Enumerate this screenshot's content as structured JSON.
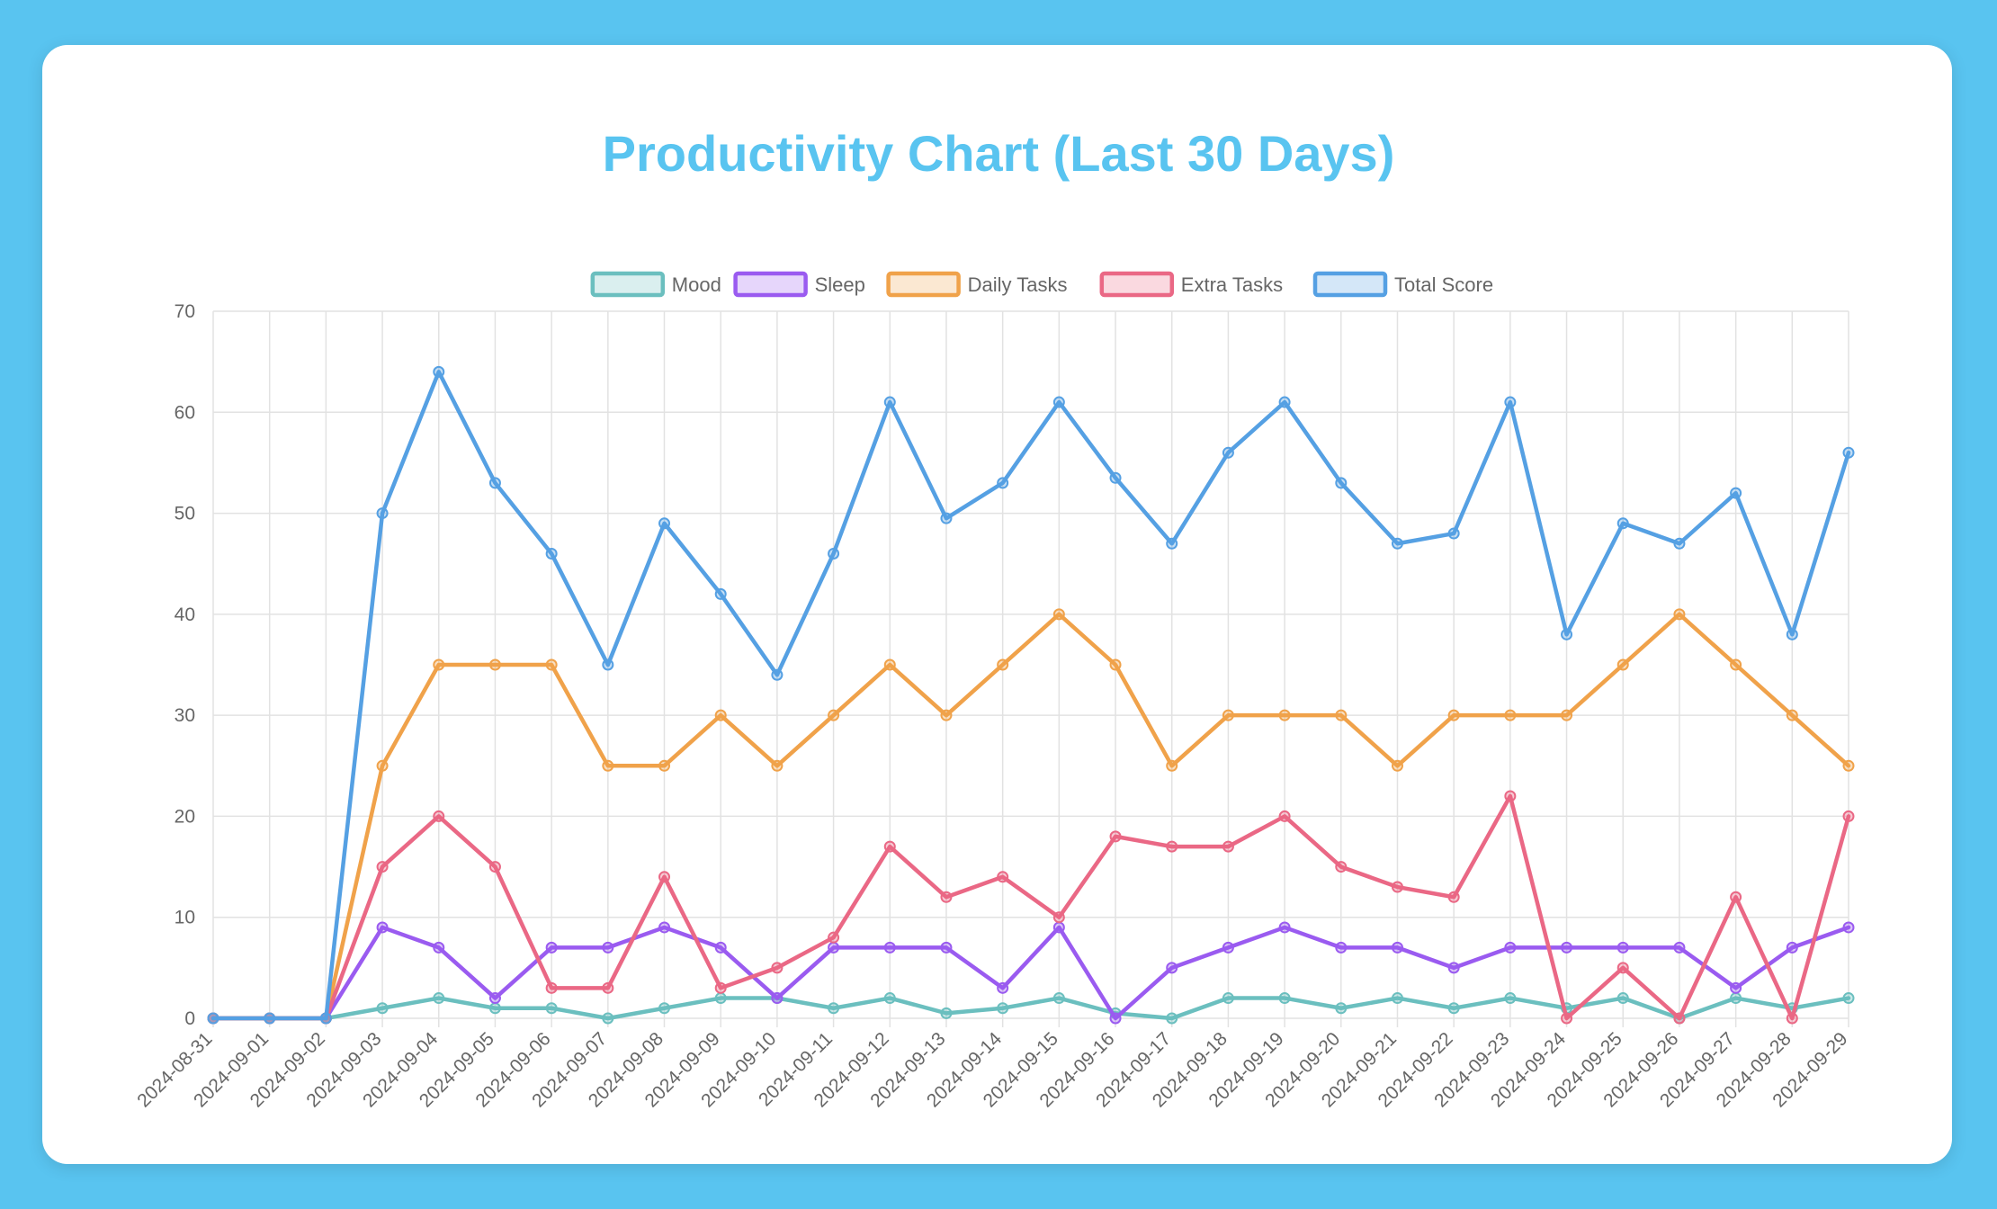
{
  "title": "Productivity Chart (Last 30 Days)",
  "chart_data": {
    "type": "line",
    "title": "Productivity Chart (Last 30 Days)",
    "xlabel": "",
    "ylabel": "",
    "ylim": [
      0,
      70
    ],
    "yticks": [
      0,
      10,
      20,
      30,
      40,
      50,
      60,
      70
    ],
    "grid": true,
    "legend_position": "top",
    "x": [
      "2024-08-31",
      "2024-09-01",
      "2024-09-02",
      "2024-09-03",
      "2024-09-04",
      "2024-09-05",
      "2024-09-06",
      "2024-09-07",
      "2024-09-08",
      "2024-09-09",
      "2024-09-10",
      "2024-09-11",
      "2024-09-12",
      "2024-09-13",
      "2024-09-14",
      "2024-09-15",
      "2024-09-16",
      "2024-09-17",
      "2024-09-18",
      "2024-09-19",
      "2024-09-20",
      "2024-09-21",
      "2024-09-22",
      "2024-09-23",
      "2024-09-24",
      "2024-09-25",
      "2024-09-26",
      "2024-09-27",
      "2024-09-28",
      "2024-09-29"
    ],
    "series": [
      {
        "name": "Mood",
        "color": "#6bbfbf",
        "values": [
          0,
          0,
          0,
          1,
          2,
          1,
          1,
          0,
          1,
          2,
          2,
          1,
          2,
          0.5,
          1,
          2,
          0.5,
          0,
          2,
          2,
          1,
          2,
          1,
          2,
          1,
          2,
          0,
          2,
          1,
          2
        ]
      },
      {
        "name": "Sleep",
        "color": "#9a5bf0",
        "values": [
          0,
          0,
          0,
          9,
          7,
          2,
          7,
          7,
          9,
          7,
          2,
          7,
          7,
          7,
          3,
          9,
          0,
          5,
          7,
          9,
          7,
          7,
          5,
          7,
          7,
          7,
          7,
          3,
          7,
          9
        ]
      },
      {
        "name": "Daily Tasks",
        "color": "#f0a24a",
        "values": [
          0,
          0,
          0,
          25,
          35,
          35,
          35,
          25,
          25,
          30,
          25,
          30,
          35,
          30,
          35,
          40,
          35,
          25,
          30,
          30,
          30,
          25,
          30,
          30,
          30,
          35,
          40,
          35,
          30,
          25
        ]
      },
      {
        "name": "Extra Tasks",
        "color": "#ea6885",
        "values": [
          0,
          0,
          0,
          15,
          20,
          15,
          3,
          3,
          14,
          3,
          5,
          8,
          17,
          12,
          14,
          10,
          18,
          17,
          17,
          20,
          15,
          13,
          12,
          22,
          0,
          5,
          0,
          12,
          0,
          20
        ]
      },
      {
        "name": "Total Score",
        "color": "#55a0e3",
        "values": [
          0,
          0,
          0,
          50,
          64,
          53,
          46,
          35,
          49,
          42,
          34,
          46,
          61,
          49.5,
          53,
          61,
          53.5,
          47,
          56,
          61,
          53,
          47,
          48,
          61,
          38,
          49,
          47,
          52,
          38,
          56
        ]
      }
    ]
  }
}
